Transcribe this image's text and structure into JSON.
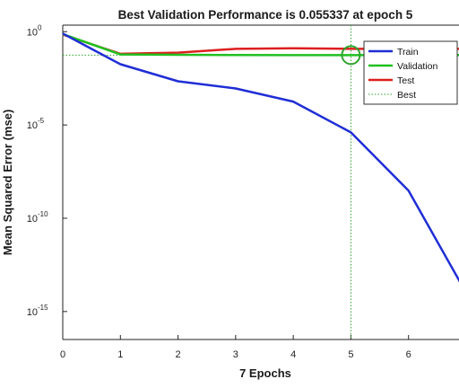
{
  "chart_data": {
    "type": "line",
    "title": "Best Validation Performance is 0.055337 at epoch 5",
    "xlabel": "7 Epochs",
    "ylabel": "Mean Squared Error  (mse)",
    "xlim": [
      0,
      7
    ],
    "ylim_log10": [
      -16.5,
      0.35
    ],
    "yscale": "log",
    "xticks": [
      "0",
      "1",
      "2",
      "3",
      "4",
      "5",
      "6"
    ],
    "yticks": [
      {
        "base": "10",
        "exp": "0",
        "value": 1
      },
      {
        "base": "10",
        "exp": "-5",
        "value": 1e-05
      },
      {
        "base": "10",
        "exp": "-10",
        "value": 1e-10
      },
      {
        "base": "10",
        "exp": "-15",
        "value": 1e-15
      }
    ],
    "x": [
      0,
      1,
      2,
      3,
      4,
      5,
      6,
      7
    ],
    "series": [
      {
        "name": "Train",
        "color": "#1f2ed6",
        "values": [
          0.8,
          0.018,
          0.0022,
          0.0009,
          0.00018,
          4e-06,
          3e-09,
          1e-14
        ]
      },
      {
        "name": "Validation",
        "color": "#21c021",
        "values": [
          0.75,
          0.06,
          0.058,
          0.056,
          0.0555,
          0.055337,
          0.056,
          0.056
        ]
      },
      {
        "name": "Test",
        "color": "#dd1f1f",
        "values": [
          0.7,
          0.065,
          0.075,
          0.12,
          0.13,
          0.12,
          0.12,
          0.12
        ]
      }
    ],
    "best": {
      "name": "Best",
      "epoch": 5,
      "value": 0.055337,
      "color": "#2ea32e"
    },
    "grid": false,
    "legend_position": "top-right"
  }
}
